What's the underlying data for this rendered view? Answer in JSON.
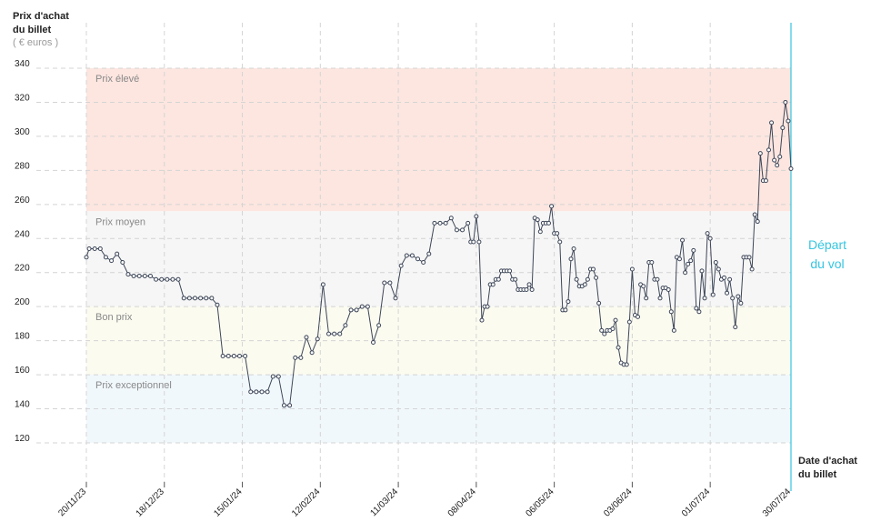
{
  "chart_data": {
    "type": "line",
    "y_title": [
      "Prix d'achat",
      "du billet"
    ],
    "y_unit": "( € euros )",
    "x_title": [
      "Date d'achat",
      "du billet"
    ],
    "departure_label": [
      "Départ",
      "du vol"
    ],
    "color": "#3d4658",
    "departure_color": "#35c6e0",
    "grid": true,
    "ylim": [
      120,
      340
    ],
    "yticks": [
      120,
      140,
      160,
      180,
      200,
      220,
      240,
      260,
      280,
      300,
      320,
      340
    ],
    "xlim": [
      "20/11/23",
      "30/07/24"
    ],
    "xticks": [
      "20/11/23",
      "18/12/23",
      "15/01/24",
      "12/02/24",
      "11/03/24",
      "08/04/24",
      "06/05/24",
      "03/06/24",
      "01/07/24",
      "30/07/24"
    ],
    "bands": [
      {
        "label": "Prix élevé",
        "from": 256,
        "to": 340,
        "color": "#fde6e0"
      },
      {
        "label": "Prix moyen",
        "from": 200,
        "to": 256,
        "color": "#f6f6f6"
      },
      {
        "label": "Bon prix",
        "from": 160,
        "to": 200,
        "color": "#fbfbf0"
      },
      {
        "label": "Prix exceptionnel",
        "from": 120,
        "to": 160,
        "color": "#f1f8fc"
      }
    ],
    "x": [
      "20/11/23",
      "21/11/23",
      "23/11/23",
      "25/11/23",
      "27/11/23",
      "29/11/23",
      "01/12/23",
      "03/12/23",
      "05/12/23",
      "07/12/23",
      "09/12/23",
      "11/12/23",
      "13/12/23",
      "15/12/23",
      "17/12/23",
      "19/12/23",
      "21/12/23",
      "23/12/23",
      "25/12/23",
      "27/12/23",
      "29/12/23",
      "31/12/23",
      "02/01/24",
      "04/01/24",
      "06/01/24",
      "08/01/24",
      "10/01/24",
      "12/01/24",
      "14/01/24",
      "16/01/24",
      "18/01/24",
      "20/01/24",
      "22/01/24",
      "24/01/24",
      "26/01/24",
      "28/01/24",
      "30/01/24",
      "01/02/24",
      "03/02/24",
      "05/02/24",
      "07/02/24",
      "09/02/24",
      "11/02/24",
      "13/02/24",
      "15/02/24",
      "17/02/24",
      "19/02/24",
      "21/02/24",
      "23/02/24",
      "25/02/24",
      "27/02/24",
      "29/02/24",
      "02/03/24",
      "04/03/24",
      "06/03/24",
      "08/03/24",
      "10/03/24",
      "12/03/24",
      "14/03/24",
      "16/03/24",
      "18/03/24",
      "20/03/24",
      "22/03/24",
      "24/03/24",
      "26/03/24",
      "28/03/24",
      "30/03/24",
      "01/04/24",
      "03/04/24",
      "05/04/24",
      "06/04/24",
      "07/04/24",
      "08/04/24",
      "09/04/24",
      "10/04/24",
      "11/04/24",
      "12/04/24",
      "13/04/24",
      "14/04/24",
      "15/04/24",
      "16/04/24",
      "17/04/24",
      "18/04/24",
      "19/04/24",
      "20/04/24",
      "21/04/24",
      "22/04/24",
      "23/04/24",
      "24/04/24",
      "25/04/24",
      "26/04/24",
      "27/04/24",
      "28/04/24",
      "29/04/24",
      "30/04/24",
      "01/05/24",
      "02/05/24",
      "03/05/24",
      "04/05/24",
      "05/05/24",
      "06/05/24",
      "07/05/24",
      "08/05/24",
      "09/05/24",
      "10/05/24",
      "11/05/24",
      "12/05/24",
      "13/05/24",
      "14/05/24",
      "15/05/24",
      "16/05/24",
      "17/05/24",
      "18/05/24",
      "19/05/24",
      "20/05/24",
      "21/05/24",
      "22/05/24",
      "23/05/24",
      "24/05/24",
      "25/05/24",
      "26/05/24",
      "27/05/24",
      "28/05/24",
      "29/05/24",
      "30/05/24",
      "31/05/24",
      "01/06/24",
      "02/06/24",
      "03/06/24",
      "04/06/24",
      "05/06/24",
      "06/06/24",
      "07/06/24",
      "08/06/24",
      "09/06/24",
      "10/06/24",
      "11/06/24",
      "12/06/24",
      "13/06/24",
      "14/06/24",
      "15/06/24",
      "16/06/24",
      "17/06/24",
      "18/06/24",
      "19/06/24",
      "20/06/24",
      "21/06/24",
      "22/06/24",
      "23/06/24",
      "24/06/24",
      "25/06/24",
      "26/06/24",
      "27/06/24",
      "28/06/24",
      "29/06/24",
      "30/06/24",
      "01/07/24",
      "02/07/24",
      "03/07/24",
      "04/07/24",
      "05/07/24",
      "06/07/24",
      "07/07/24",
      "08/07/24",
      "09/07/24",
      "10/07/24",
      "11/07/24",
      "12/07/24",
      "13/07/24",
      "14/07/24",
      "15/07/24",
      "16/07/24",
      "17/07/24",
      "18/07/24",
      "19/07/24",
      "20/07/24",
      "21/07/24",
      "22/07/24",
      "23/07/24",
      "24/07/24",
      "25/07/24",
      "26/07/24",
      "27/07/24",
      "28/07/24",
      "29/07/24",
      "30/07/24"
    ],
    "values": [
      229,
      234,
      234,
      234,
      229,
      227,
      231,
      226,
      219,
      218,
      218,
      218,
      218,
      216,
      216,
      216,
      216,
      216,
      205,
      205,
      205,
      205,
      205,
      205,
      201,
      171,
      171,
      171,
      171,
      171,
      150,
      150,
      150,
      150,
      159,
      159,
      142,
      142,
      170,
      170,
      182,
      173,
      181,
      213,
      184,
      184,
      184,
      189,
      198,
      198,
      200,
      200,
      179,
      189,
      214,
      214,
      205,
      224,
      230,
      230,
      228,
      226,
      231,
      249,
      249,
      249,
      252,
      245,
      245,
      249,
      238,
      238,
      253,
      238,
      192,
      200,
      200,
      213,
      213,
      216,
      216,
      221,
      221,
      221,
      221,
      216,
      216,
      210,
      210,
      210,
      210,
      213,
      210,
      252,
      251,
      244,
      249,
      249,
      249,
      259,
      243,
      243,
      238,
      198,
      198,
      203,
      228,
      234,
      216,
      212,
      212,
      213,
      216,
      222,
      222,
      217,
      202,
      186,
      184,
      186,
      186,
      187,
      192,
      176,
      167,
      166,
      166,
      191,
      222,
      195,
      194,
      213,
      212,
      205,
      226,
      226,
      216,
      216,
      205,
      211,
      211,
      210,
      197,
      186,
      229,
      228,
      239,
      220,
      225,
      227,
      233,
      199,
      197,
      221,
      205,
      243,
      240,
      207,
      226,
      222,
      216,
      217,
      208,
      216,
      205,
      188,
      206,
      202,
      229,
      229,
      229,
      222,
      254,
      250,
      290,
      274,
      274,
      292,
      308,
      286,
      283,
      288,
      305,
      320,
      309,
      281
    ]
  }
}
